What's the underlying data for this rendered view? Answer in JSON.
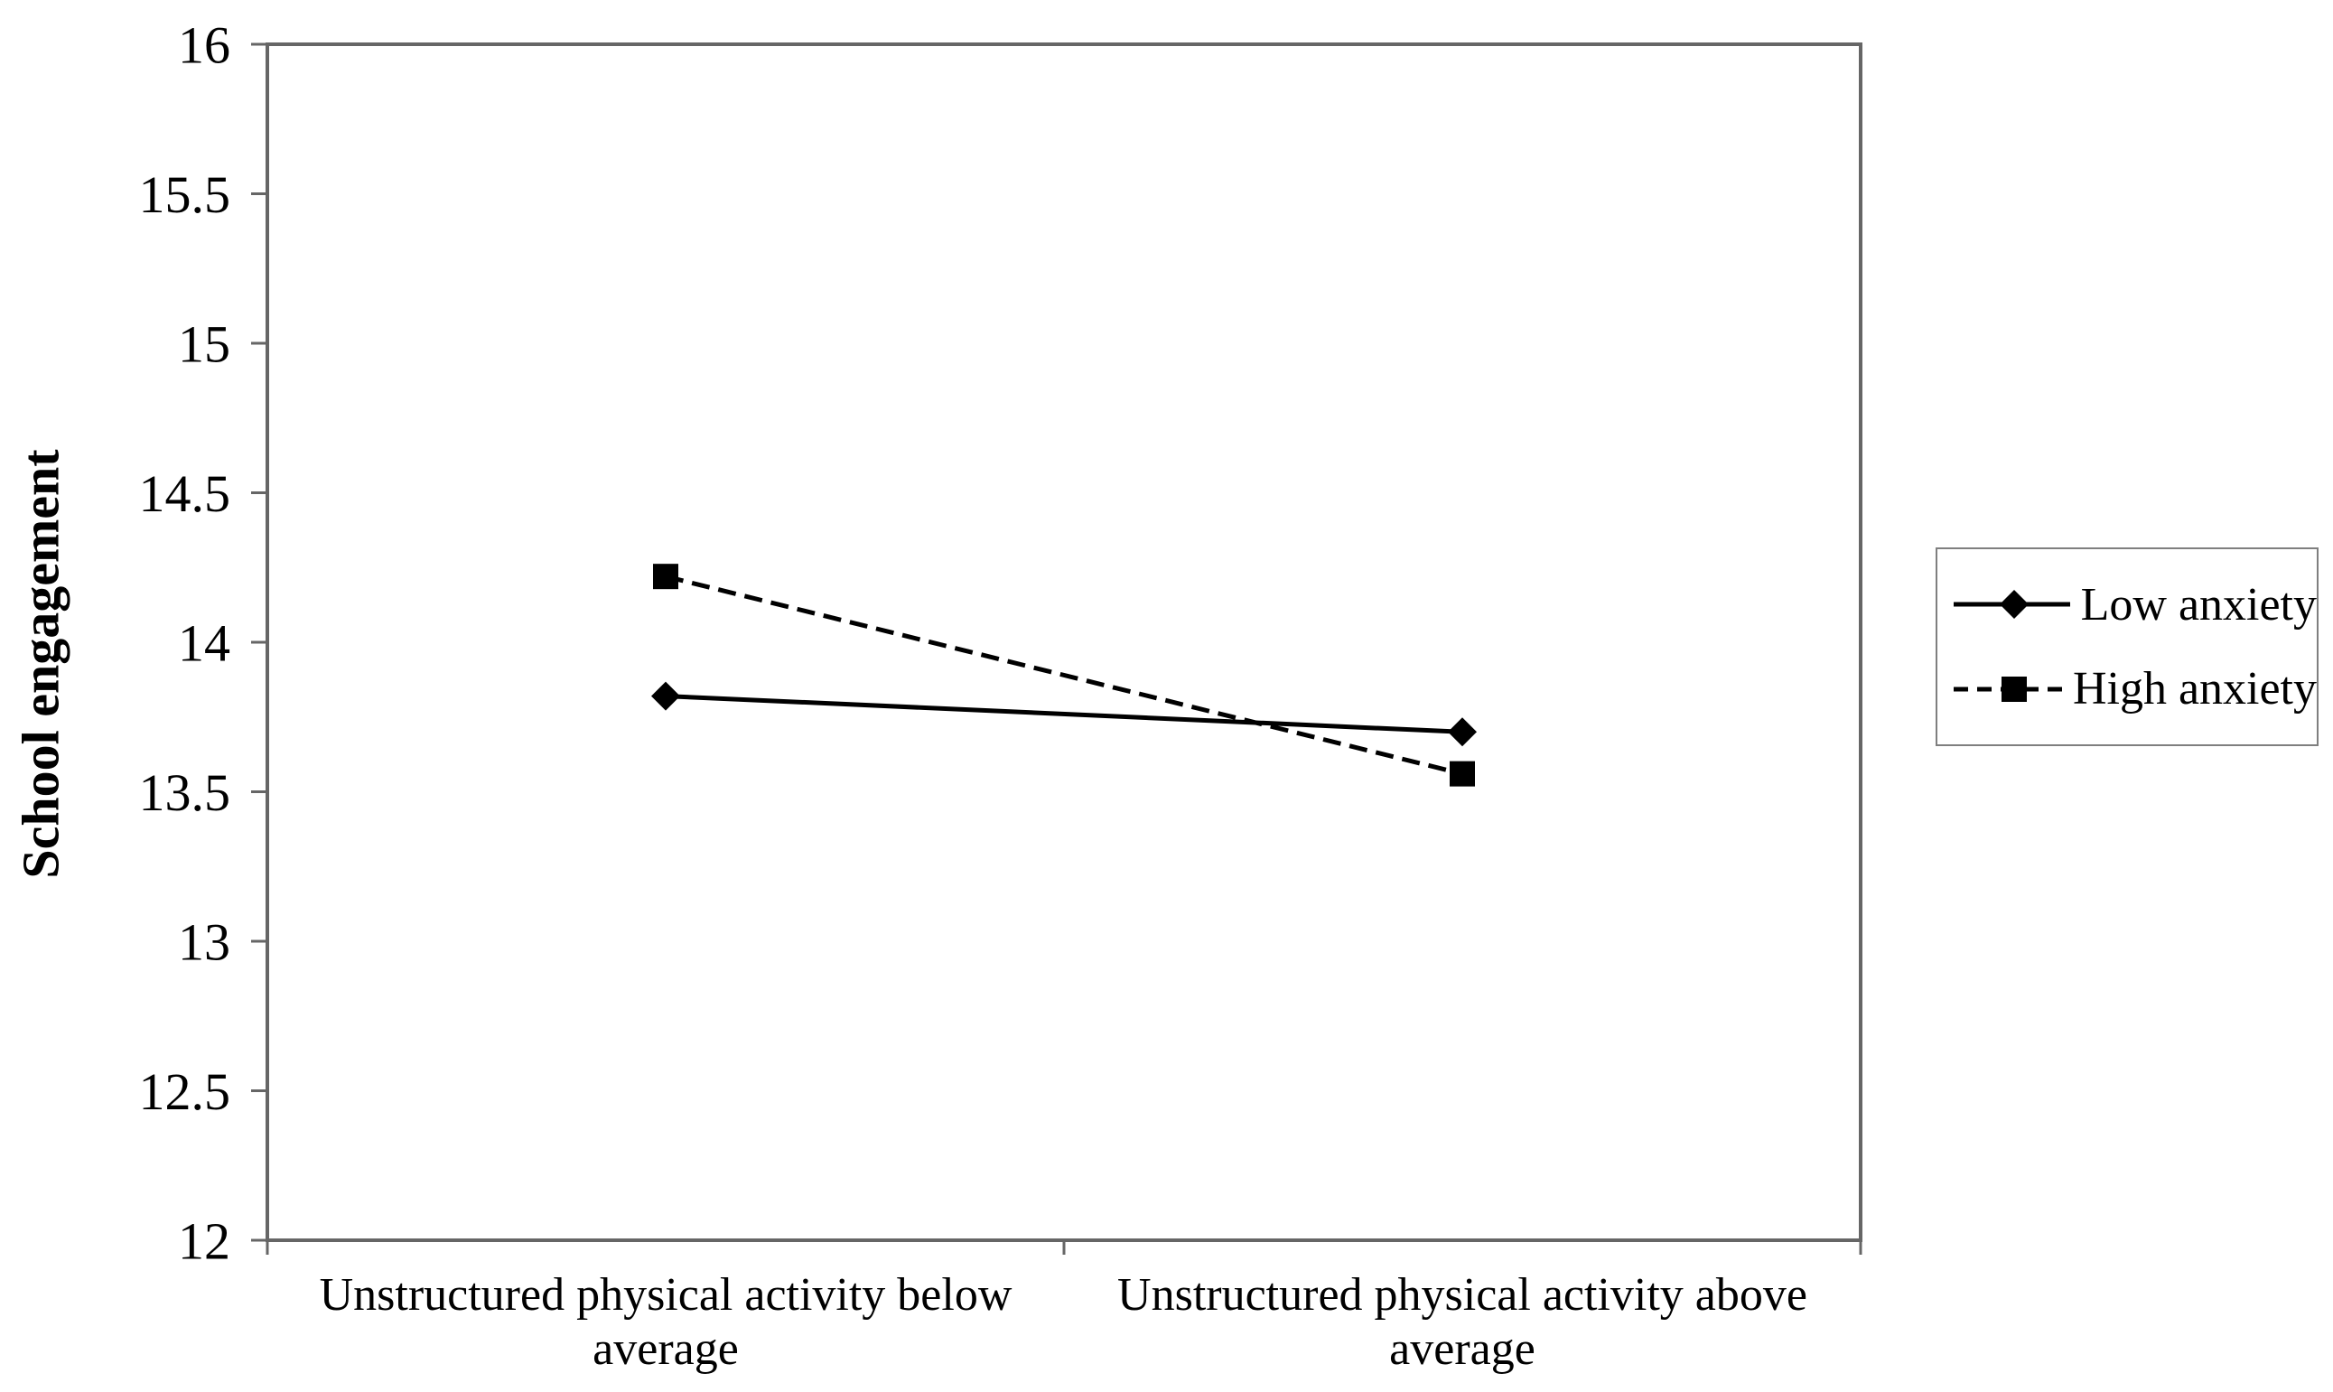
{
  "chart_data": {
    "type": "line",
    "title": "",
    "xlabel": "",
    "ylabel": "School engagement",
    "categories": [
      "Unstructured physical activity below average",
      "Unstructured physical activity above average"
    ],
    "category_label_lines": [
      [
        "Unstructured physical activity below",
        "average"
      ],
      [
        "Unstructured physical activity above",
        "average"
      ]
    ],
    "series": [
      {
        "name": "Low anxiety",
        "values": [
          13.82,
          13.7
        ],
        "line_style": "solid",
        "marker": "diamond",
        "color": "#000000"
      },
      {
        "name": "High anxiety",
        "values": [
          14.22,
          13.56
        ],
        "line_style": "dashed",
        "marker": "square",
        "color": "#000000"
      }
    ],
    "ylim": [
      12,
      16
    ],
    "yticks": [
      12,
      12.5,
      13,
      13.5,
      14,
      14.5,
      15,
      15.5,
      16
    ],
    "grid": false,
    "legend_position": "right",
    "axis_color": "#666666",
    "text_color": "#000000",
    "background": "#ffffff"
  }
}
